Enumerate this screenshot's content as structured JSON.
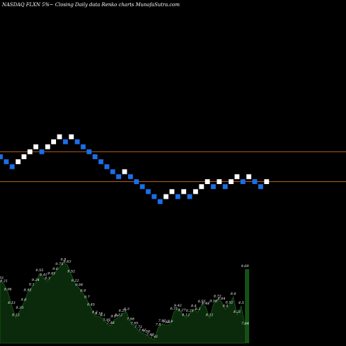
{
  "title": "NASDAQ FLXN  5%~  Closing Daily data  Renko  charts MunafaSutra.com",
  "colors": {
    "background": "#000000",
    "up_brick": "#ffffff",
    "down_brick": "#1a6ee8",
    "reference_line": "#b8621b",
    "volume_fill": "#0b2a0b",
    "volume_line": "#1f7a1f",
    "volume_last": "#145214"
  },
  "chart_data": [
    {
      "type": "renko",
      "title": "NASDAQ FLXN  5%~  Closing Daily data  Renko  charts MunafaSutra.com",
      "brick_step": 1,
      "reference_levels": [
        11,
        5
      ],
      "bricks": [
        {
          "dir": "down",
          "level": 10
        },
        {
          "dir": "down",
          "level": 9
        },
        {
          "dir": "down",
          "level": 8
        },
        {
          "dir": "up",
          "level": 9
        },
        {
          "dir": "up",
          "level": 10
        },
        {
          "dir": "up",
          "level": 11
        },
        {
          "dir": "up",
          "level": 12
        },
        {
          "dir": "down",
          "level": 11
        },
        {
          "dir": "up",
          "level": 12
        },
        {
          "dir": "up",
          "level": 13
        },
        {
          "dir": "up",
          "level": 14
        },
        {
          "dir": "down",
          "level": 13
        },
        {
          "dir": "up",
          "level": 14
        },
        {
          "dir": "down",
          "level": 13
        },
        {
          "dir": "down",
          "level": 12
        },
        {
          "dir": "down",
          "level": 11
        },
        {
          "dir": "down",
          "level": 10
        },
        {
          "dir": "down",
          "level": 9
        },
        {
          "dir": "down",
          "level": 8
        },
        {
          "dir": "down",
          "level": 7
        },
        {
          "dir": "down",
          "level": 6
        },
        {
          "dir": "up",
          "level": 7
        },
        {
          "dir": "down",
          "level": 6
        },
        {
          "dir": "down",
          "level": 5
        },
        {
          "dir": "down",
          "level": 4
        },
        {
          "dir": "down",
          "level": 3
        },
        {
          "dir": "down",
          "level": 2
        },
        {
          "dir": "down",
          "level": 1
        },
        {
          "dir": "up",
          "level": 2
        },
        {
          "dir": "up",
          "level": 3
        },
        {
          "dir": "down",
          "level": 2
        },
        {
          "dir": "up",
          "level": 3
        },
        {
          "dir": "down",
          "level": 2
        },
        {
          "dir": "up",
          "level": 3
        },
        {
          "dir": "up",
          "level": 4
        },
        {
          "dir": "up",
          "level": 5
        },
        {
          "dir": "down",
          "level": 4
        },
        {
          "dir": "up",
          "level": 5
        },
        {
          "dir": "down",
          "level": 4
        },
        {
          "dir": "up",
          "level": 5
        },
        {
          "dir": "up",
          "level": 6
        },
        {
          "dir": "down",
          "level": 5
        },
        {
          "dir": "up",
          "level": 6
        },
        {
          "dir": "down",
          "level": 5
        },
        {
          "dir": "down",
          "level": 4
        },
        {
          "dir": "up",
          "level": 5
        }
      ]
    },
    {
      "type": "area",
      "series_role": "volume",
      "values": [
        9.31,
        9.21,
        8.94,
        8.51,
        8.12,
        8.35,
        8.6,
        8.92,
        9.1,
        9.24,
        9.55,
        9.41,
        9.3,
        9.45,
        9.6,
        9.75,
        9.9,
        9.83,
        9.52,
        9.22,
        9.08,
        8.9,
        8.7,
        8.45,
        8.2,
        8.16,
        8.1,
        7.95,
        7.86,
        8.07,
        8.12,
        8.25,
        8.3,
        7.98,
        7.85,
        7.72,
        7.62,
        7.58,
        7.48,
        7.41,
        7.8,
        7.92,
        7.88,
        7.9,
        8.31,
        8.42,
        8.27,
        8.12,
        8.25,
        8.4,
        8.3,
        8.55,
        8.48,
        8.11,
        8.56,
        8.72,
        8.64,
        8.4,
        8.52,
        8.8,
        8.21,
        8.5,
        7.84,
        9.69
      ],
      "labels": [
        "9.31",
        "9.21",
        "8.94",
        "8.51",
        "8.12",
        "8.35",
        "8.6",
        "8.92",
        "9.1",
        "9.24",
        "9.55",
        "9.41",
        "9.3",
        "9.45",
        "9.6",
        "9.75",
        "9.9",
        "9.83",
        "9.52",
        "9.22",
        "9.08",
        "8.9",
        "8.7",
        "8.45",
        "8.2",
        "8.16",
        "8.1",
        "7.95",
        "7.86",
        "8.07",
        "8.12",
        "8.25",
        "8.3",
        "7.98",
        "7.85",
        "7.72",
        "7.62",
        "7.58",
        "7.48",
        "7.41",
        "7.8",
        "7.92",
        "7.88",
        "7.9",
        "8.31",
        "8.42",
        "8.27",
        "8.12",
        "8.25",
        "8.4",
        "8.3",
        "8.55",
        "8.48",
        "8.11",
        "8.56",
        "8.72",
        "8.64",
        "8.4",
        "8.52",
        "8.8",
        "8.21",
        "8.5",
        "7.84",
        "9.69"
      ],
      "ylim": [
        7.3,
        10.0
      ]
    }
  ]
}
